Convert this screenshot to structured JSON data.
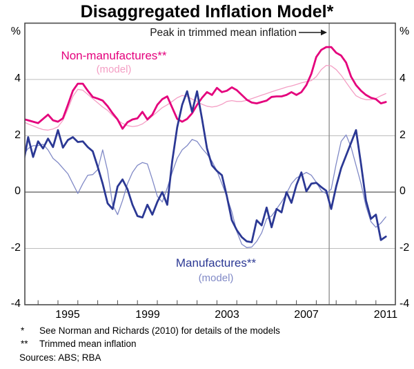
{
  "title": "Disaggregated Inflation Model*",
  "annotation": {
    "label": "Peak in trimmed mean inflation"
  },
  "axis": {
    "left": [
      "%",
      "4",
      "2",
      "0",
      "-2",
      "-4"
    ],
    "right": [
      "%",
      "4",
      "2",
      "0",
      "-2",
      "-4"
    ],
    "years": [
      "1995",
      "1999",
      "2003",
      "2007",
      "2011"
    ]
  },
  "legend": {
    "non_manufactures_label": "Non-manufactures**",
    "non_manufactures_model": "(model)",
    "manufactures_label": "Manufactures**",
    "manufactures_model": "(model)"
  },
  "footnotes": [
    {
      "marker": "*",
      "text": "See Norman and Richards (2010) for details of the models"
    },
    {
      "marker": "**",
      "text": "Trimmed mean inflation"
    }
  ],
  "sources": "Sources: ABS; RBA",
  "colors": {
    "non_manufactures_actual": "#e4007c",
    "non_manufactures_model": "#f49ec4",
    "manufactures_actual": "#2b3894",
    "manufactures_model": "#8089c6",
    "gridline": "#bcbcbc",
    "zero_line": "#757575",
    "frame": "#4a4a4a",
    "marker_line": "#8a8a8a"
  },
  "chart_data": {
    "type": "line",
    "title": "Disaggregated Inflation Model*",
    "xlabel": "",
    "ylabel": "%",
    "ylim": [
      -4,
      6
    ],
    "xlim": [
      1993.25,
      2012.0
    ],
    "grid": "horizontal",
    "gridline_values": [
      4,
      2,
      -2
    ],
    "zero_line_value": 0,
    "x_start": 1993.25,
    "x_step": 0.25,
    "year_tick_start": 1994,
    "year_tick_end": 2011,
    "year_label_centers": [
      1995.5,
      1999.5,
      2003.5,
      2007.5,
      2011.5
    ],
    "vertical_marker_x": 2008.65,
    "vertical_marker_label": "Peak in trimmed mean inflation",
    "series": [
      {
        "name": "Non-manufactures (model)",
        "color": "#f49ec4",
        "width": 1.3,
        "values": [
          2.5,
          2.42,
          2.35,
          2.28,
          2.22,
          2.2,
          2.24,
          2.32,
          2.55,
          2.95,
          3.4,
          3.65,
          3.62,
          3.47,
          3.32,
          3.17,
          3.02,
          2.9,
          2.72,
          2.56,
          2.44,
          2.36,
          2.33,
          2.35,
          2.42,
          2.55,
          2.7,
          2.85,
          3.0,
          3.1,
          3.22,
          3.35,
          3.43,
          3.4,
          3.3,
          3.22,
          3.12,
          3.05,
          3.02,
          3.05,
          3.12,
          3.22,
          3.25,
          3.22,
          3.22,
          3.26,
          3.32,
          3.38,
          3.44,
          3.5,
          3.56,
          3.62,
          3.67,
          3.73,
          3.77,
          3.82,
          3.88,
          3.92,
          3.96,
          4.1,
          4.35,
          4.5,
          4.48,
          4.35,
          4.15,
          3.9,
          3.65,
          3.42,
          3.33,
          3.28,
          3.28,
          3.33,
          3.42,
          3.5
        ]
      },
      {
        "name": "Non-manufactures (actual)",
        "color": "#e4007c",
        "width": 2.8,
        "values": [
          2.6,
          2.55,
          2.5,
          2.45,
          2.6,
          2.75,
          2.55,
          2.5,
          2.62,
          3.1,
          3.6,
          3.85,
          3.85,
          3.6,
          3.38,
          3.32,
          3.25,
          3.05,
          2.8,
          2.58,
          2.25,
          2.48,
          2.58,
          2.62,
          2.85,
          2.58,
          2.75,
          3.1,
          3.3,
          3.4,
          3.0,
          2.6,
          2.5,
          2.6,
          2.8,
          3.1,
          3.35,
          3.55,
          3.45,
          3.7,
          3.55,
          3.6,
          3.72,
          3.62,
          3.45,
          3.28,
          3.18,
          3.15,
          3.2,
          3.25,
          3.38,
          3.4,
          3.4,
          3.45,
          3.55,
          3.45,
          3.55,
          3.8,
          4.2,
          4.8,
          5.05,
          5.15,
          5.15,
          4.95,
          4.85,
          4.6,
          4.1,
          3.8,
          3.6,
          3.45,
          3.35,
          3.3,
          3.15,
          3.2
        ]
      },
      {
        "name": "Manufactures (model)",
        "color": "#8089c6",
        "width": 1.3,
        "values": [
          1.3,
          1.55,
          1.65,
          1.65,
          1.7,
          1.5,
          1.2,
          1.05,
          0.85,
          0.65,
          0.3,
          -0.05,
          0.3,
          0.6,
          0.62,
          0.8,
          1.5,
          0.75,
          -0.45,
          -0.8,
          -0.3,
          0.3,
          0.7,
          0.95,
          1.05,
          1.0,
          0.45,
          -0.15,
          -0.35,
          0.15,
          0.7,
          1.2,
          1.5,
          1.65,
          1.87,
          1.8,
          1.55,
          1.35,
          1.1,
          0.75,
          0.3,
          -0.17,
          -0.7,
          -1.4,
          -1.85,
          -1.97,
          -1.95,
          -1.75,
          -1.45,
          -0.95,
          -0.85,
          -0.6,
          -0.35,
          -0.05,
          0.3,
          0.5,
          0.6,
          0.7,
          0.6,
          0.35,
          0.05,
          -0.05,
          0.1,
          1.0,
          1.8,
          2.03,
          1.6,
          0.95,
          0.3,
          -0.5,
          -1.05,
          -1.25,
          -1.1,
          -0.88
        ]
      },
      {
        "name": "Manufactures (actual)",
        "color": "#2b3894",
        "width": 2.8,
        "values": [
          1.0,
          1.95,
          1.25,
          1.8,
          1.55,
          1.9,
          1.6,
          2.2,
          1.58,
          1.85,
          1.95,
          1.78,
          1.8,
          1.6,
          1.45,
          0.9,
          0.3,
          -0.4,
          -0.6,
          0.2,
          0.45,
          0.1,
          -0.45,
          -0.85,
          -0.9,
          -0.45,
          -0.8,
          -0.35,
          0.0,
          -0.45,
          1.1,
          2.3,
          3.1,
          3.58,
          2.85,
          3.58,
          2.6,
          1.55,
          0.95,
          0.75,
          0.6,
          -0.15,
          -1.0,
          -1.35,
          -1.6,
          -1.75,
          -1.78,
          -1.0,
          -1.18,
          -0.55,
          -1.25,
          -0.6,
          -0.72,
          0.0,
          -0.38,
          0.25,
          0.7,
          0.03,
          0.3,
          0.33,
          0.18,
          0.05,
          -0.6,
          0.2,
          0.85,
          1.3,
          1.75,
          2.2,
          1.0,
          -0.3,
          -0.95,
          -0.8,
          -1.7,
          -1.58
        ]
      }
    ]
  }
}
